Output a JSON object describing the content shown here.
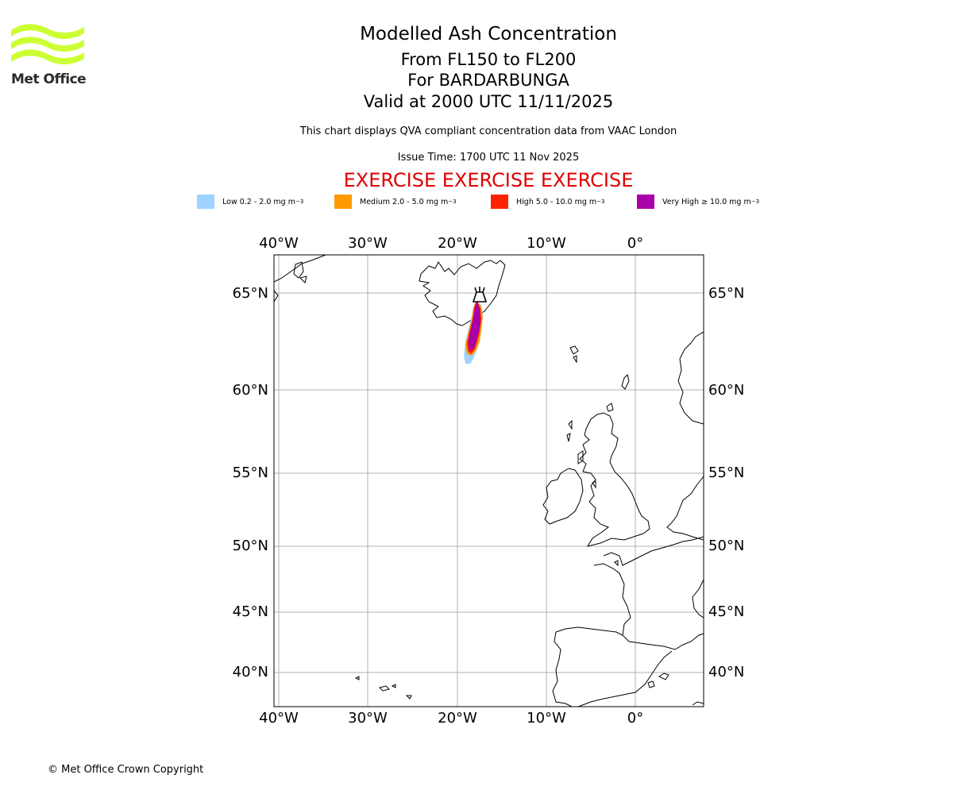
{
  "header": {
    "title": "Modelled Ash Concentration",
    "levels": "From FL150 to FL200",
    "volcano": "For BARDARBUNGA",
    "valid": "Valid at 2000 UTC 11/11/2025",
    "description": "This chart displays QVA compliant concentration data from VAAC London",
    "issue_time": "Issue Time: 1700 UTC 11 Nov 2025",
    "exercise": "EXERCISE EXERCISE EXERCISE"
  },
  "logo": {
    "text": "Met Office",
    "color": "#ccff33"
  },
  "legend": [
    {
      "label": "Low 0.2 - 2.0 mg m",
      "color": "#9fd3ff"
    },
    {
      "label": "Medium 2.0 - 5.0 mg m",
      "color": "#ff9900"
    },
    {
      "label": "High 5.0 - 10.0 mg m",
      "color": "#ff2200"
    },
    {
      "label": "Very High ≥ 10.0 mg m",
      "color": "#aa00aa"
    }
  ],
  "legend_unit_exponent": "−3",
  "map": {
    "lon_range": [
      -40.5,
      7.5
    ],
    "lat_range": [
      38,
      67
    ],
    "lon_ticks": [
      "40°W",
      "30°W",
      "20°W",
      "10°W",
      "0°"
    ],
    "lat_ticks": [
      "65°N",
      "60°N",
      "55°N",
      "50°N",
      "45°N",
      "40°N"
    ],
    "volcano": {
      "name": "BARDARBUNGA",
      "lat": 64.6,
      "lon": -17.5
    }
  },
  "footer": {
    "copyright": "© Met Office Crown Copyright"
  }
}
